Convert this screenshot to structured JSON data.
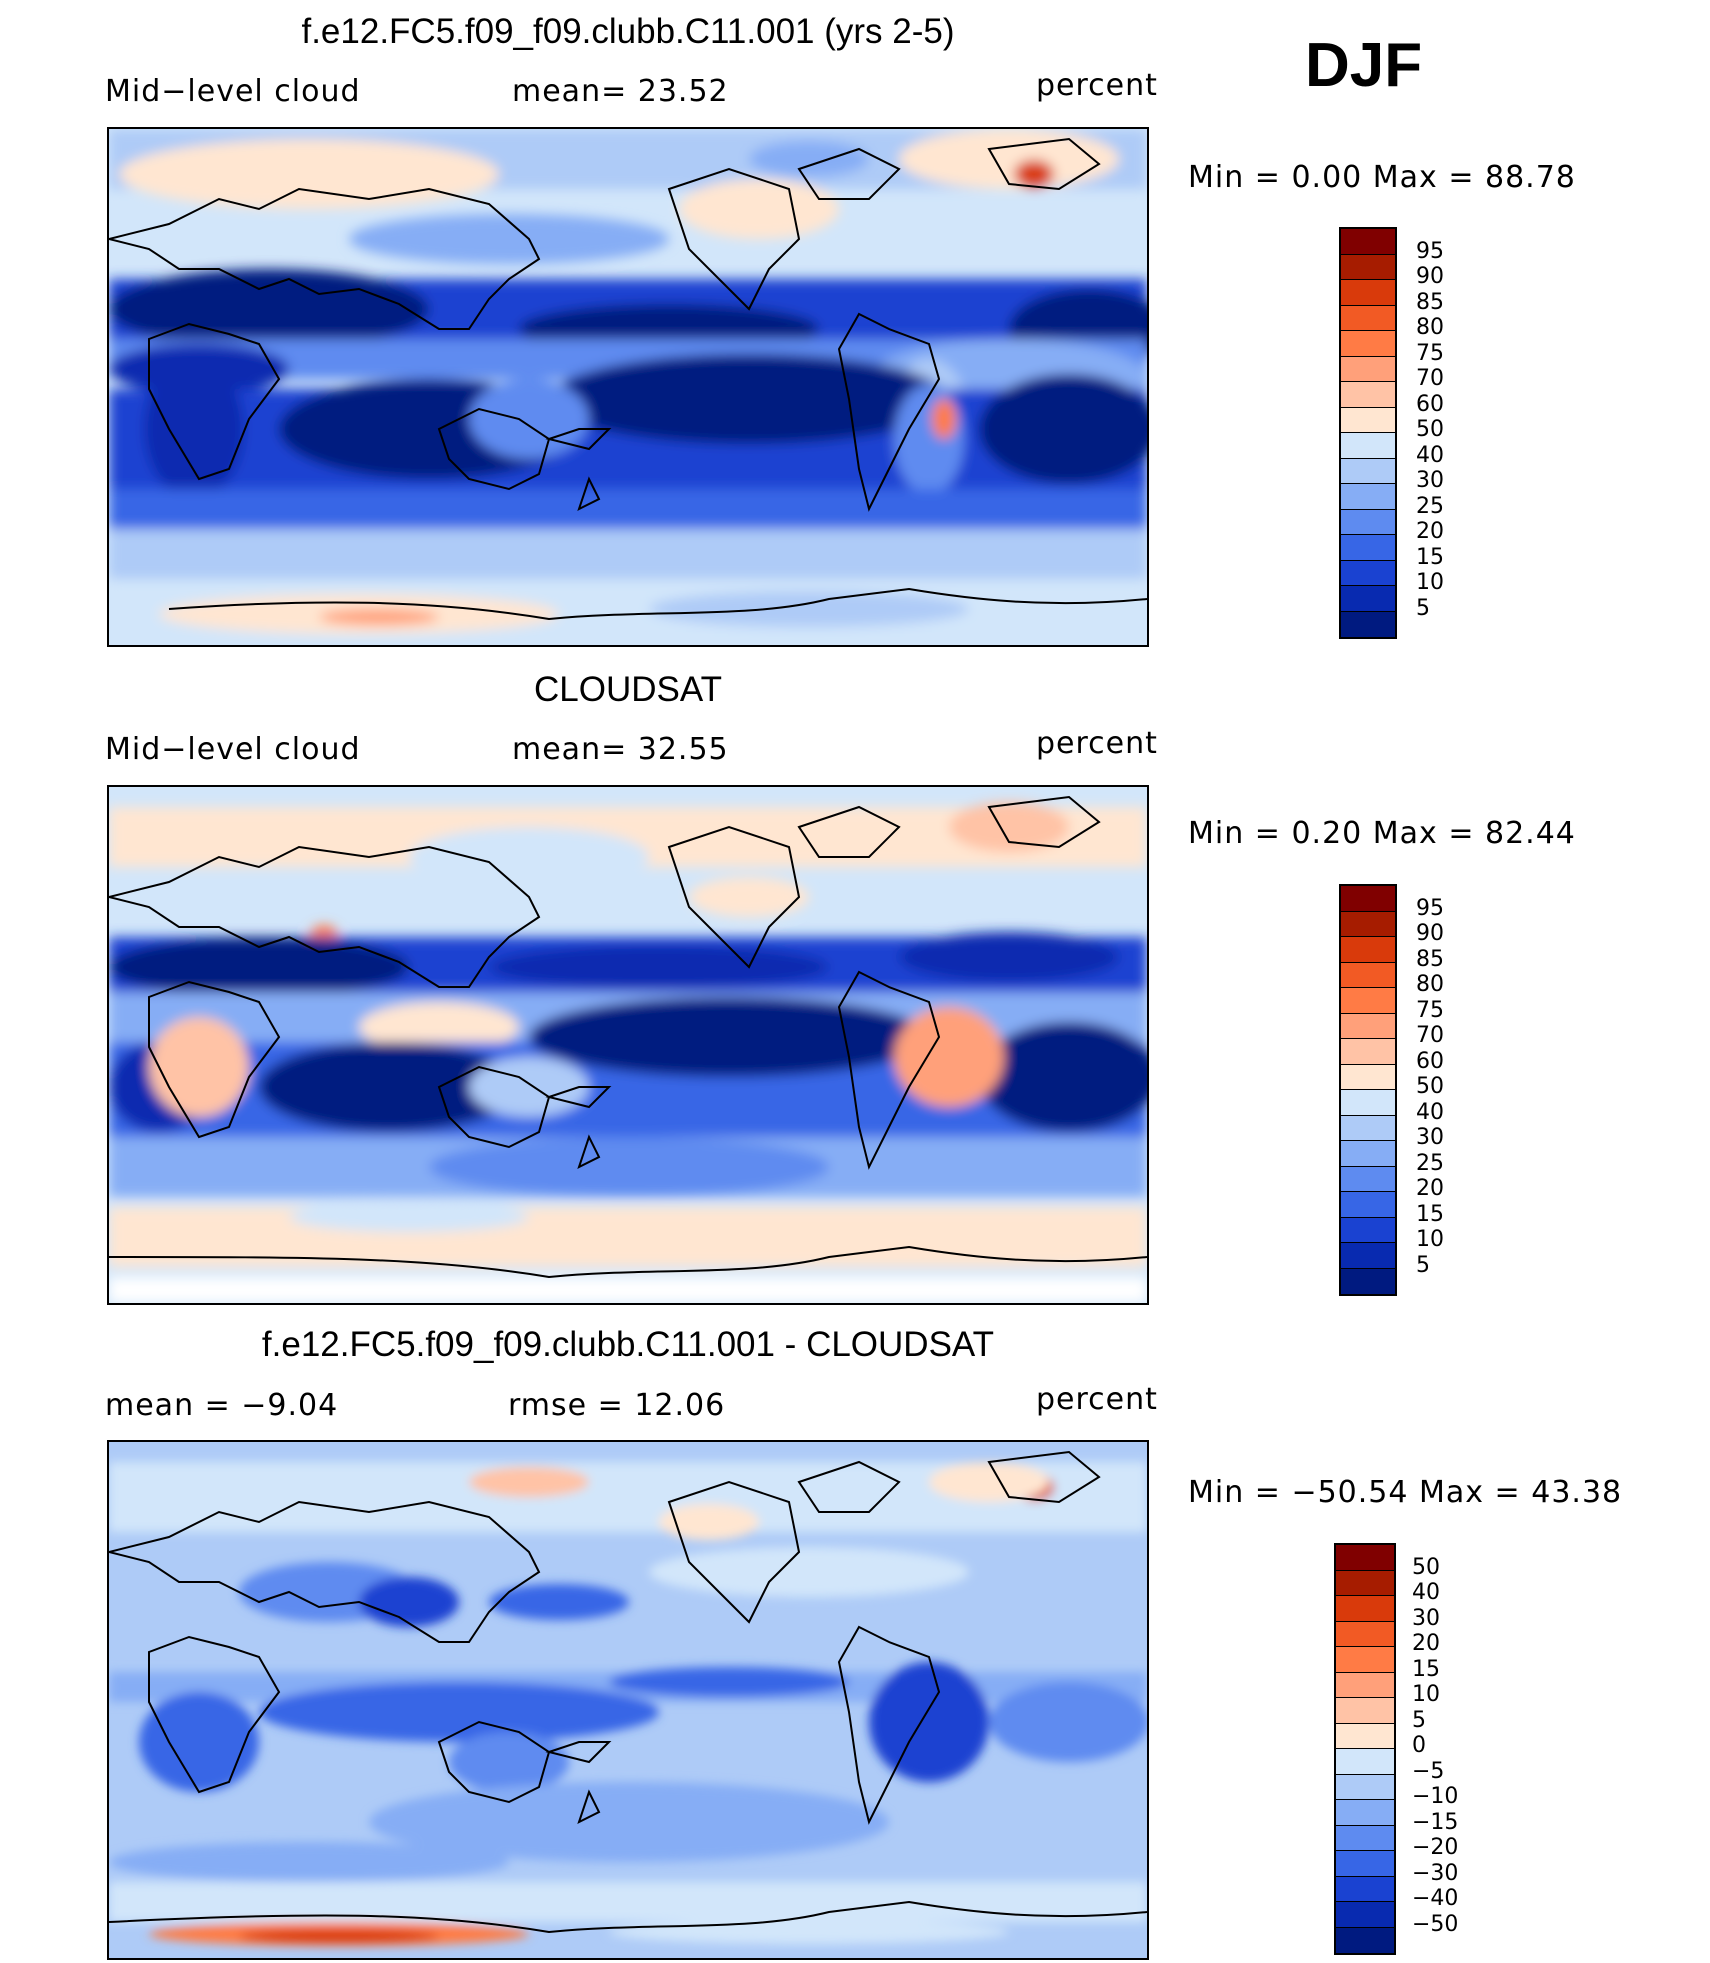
{
  "season": "DJF",
  "panels": [
    {
      "title": "f.e12.FC5.f09_f09.clubb.C11.001 (yrs 2-5)",
      "left_label": "Mid−level  cloud",
      "mid_label": "mean=   23.52",
      "right_label": "percent",
      "minmax": "Min  =     0.00  Max  =    88.78",
      "colorbar_labels": [
        "95",
        "90",
        "85",
        "80",
        "75",
        "70",
        "60",
        "50",
        "40",
        "30",
        "25",
        "20",
        "15",
        "10",
        "5"
      ]
    },
    {
      "title": "CLOUDSAT",
      "left_label": "Mid−level  cloud",
      "mid_label": "mean=   32.55",
      "right_label": "percent",
      "minmax": "Min  =     0.20  Max  =    82.44",
      "colorbar_labels": [
        "95",
        "90",
        "85",
        "80",
        "75",
        "70",
        "60",
        "50",
        "40",
        "30",
        "25",
        "20",
        "15",
        "10",
        "5"
      ]
    },
    {
      "title": "f.e12.FC5.f09_f09.clubb.C11.001 - CLOUDSAT",
      "left_label": "mean  =    −9.04",
      "mid_label": "rmse  =    12.06",
      "right_label": "percent",
      "minmax": "Min  = −50.54  Max  =    43.38",
      "colorbar_labels": [
        "50",
        "40",
        "30",
        "20",
        "15",
        "10",
        "5",
        "0",
        "−5",
        "−10",
        "−15",
        "−20",
        "−30",
        "−40",
        "−50"
      ]
    }
  ],
  "colors": {
    "abs_scale": [
      "#800000",
      "#a61c00",
      "#d93a0b",
      "#f25a24",
      "#ff7b45",
      "#ffa07a",
      "#ffc3a6",
      "#ffe6d1",
      "#d2e6fa",
      "#aecbf7",
      "#86adf5",
      "#5e8bf0",
      "#3766e6",
      "#1a42d1",
      "#082ab0",
      "#001a80"
    ],
    "diff_scale": [
      "#800000",
      "#a61c00",
      "#d93a0b",
      "#f25a24",
      "#ff7b45",
      "#ffa07a",
      "#ffc3a6",
      "#ffe6d1",
      "#d2e6fa",
      "#aecbf7",
      "#86adf5",
      "#5e8bf0",
      "#3766e6",
      "#1a42d1",
      "#082ab0",
      "#001a80"
    ]
  }
}
